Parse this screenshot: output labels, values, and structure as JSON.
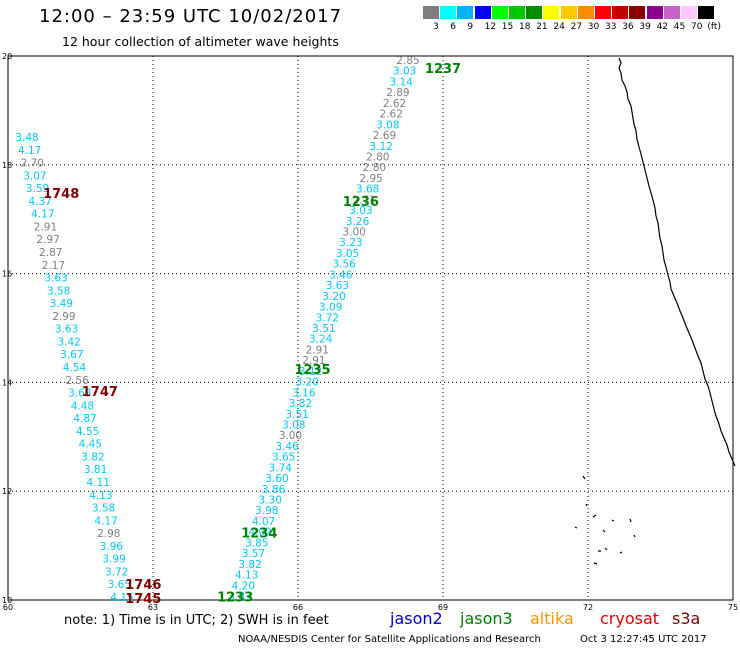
{
  "header": {
    "title": "12:00 – 23:59 UTC 10/02/2017",
    "subtitle": "12 hour collection of altimeter wave heights"
  },
  "colorbar": {
    "unit_label": "(ft)",
    "bins": [
      {
        "label": "3",
        "color": "#7f7f7f"
      },
      {
        "label": "6",
        "color": "#00ffff"
      },
      {
        "label": "9",
        "color": "#00b4ff"
      },
      {
        "label": "12",
        "color": "#0000ff"
      },
      {
        "label": "15",
        "color": "#00ff00"
      },
      {
        "label": "18",
        "color": "#00c800"
      },
      {
        "label": "21",
        "color": "#008c00"
      },
      {
        "label": "24",
        "color": "#ffff00"
      },
      {
        "label": "27",
        "color": "#ffc800"
      },
      {
        "label": "30",
        "color": "#ff8c00"
      },
      {
        "label": "33",
        "color": "#ff0000"
      },
      {
        "label": "36",
        "color": "#c80000"
      },
      {
        "label": "39",
        "color": "#8c0000"
      },
      {
        "label": "42",
        "color": "#8c008c"
      },
      {
        "label": "45",
        "color": "#c864c8"
      },
      {
        "label": "70",
        "color": "#ffc8ff"
      },
      {
        "label": "",
        "color": "#000000"
      }
    ]
  },
  "map": {
    "lon_ticks": [
      "60",
      "63",
      "66",
      "69",
      "72",
      "75"
    ],
    "lat_ticks": [
      "10",
      "12",
      "14",
      "16",
      "18",
      "20"
    ],
    "passes": [
      {
        "label": "1237",
        "color": "#008000",
        "lon": 69.0,
        "lat": 19.76
      },
      {
        "label": "1236",
        "color": "#008000",
        "lon": 67.3,
        "lat": 17.32
      },
      {
        "label": "1235",
        "color": "#008000",
        "lon": 66.3,
        "lat": 14.23
      },
      {
        "label": "1234",
        "color": "#008000",
        "lon": 65.2,
        "lat": 11.22
      },
      {
        "label": "1233",
        "color": "#008000",
        "lon": 64.7,
        "lat": 10.05
      },
      {
        "label": "1748",
        "color": "#800000",
        "lon": 61.1,
        "lat": 17.46
      },
      {
        "label": "1747",
        "color": "#800000",
        "lon": 61.9,
        "lat": 13.82
      },
      {
        "label": "1746",
        "color": "#800000",
        "lon": 62.8,
        "lat": 10.28
      },
      {
        "label": "1745",
        "color": "#800000",
        "lon": 62.8,
        "lat": 10.02
      }
    ],
    "tracks": [
      {
        "name": "track-1237",
        "values": [
          [
            "2.85",
            "#7f7f7f"
          ],
          [
            "3.03",
            "#00c8ff"
          ],
          [
            "3.14",
            "#00c8ff"
          ],
          [
            "2.89",
            "#7f7f7f"
          ],
          [
            "2.62",
            "#7f7f7f"
          ],
          [
            "2.62",
            "#7f7f7f"
          ],
          [
            "3.08",
            "#00c8ff"
          ],
          [
            "2.69",
            "#7f7f7f"
          ],
          [
            "3.12",
            "#00c8ff"
          ],
          [
            "2.80",
            "#7f7f7f"
          ],
          [
            "2.80",
            "#7f7f7f"
          ],
          [
            "2.95",
            "#7f7f7f"
          ],
          [
            "3.68",
            "#00c8ff"
          ],
          [
            "2.71",
            "#7f7f7f"
          ],
          [
            "3.03",
            "#00c8ff"
          ],
          [
            "3.26",
            "#00c8ff"
          ],
          [
            "3.00",
            "#7f7f7f"
          ],
          [
            "3.23",
            "#00c8ff"
          ],
          [
            "3.05",
            "#00c8ff"
          ],
          [
            "3.56",
            "#00c8ff"
          ],
          [
            "3.46",
            "#00c8ff"
          ],
          [
            "3.63",
            "#00c8ff"
          ],
          [
            "3.20",
            "#00c8ff"
          ],
          [
            "3.09",
            "#00c8ff"
          ],
          [
            "3.72",
            "#00c8ff"
          ],
          [
            "3.51",
            "#00c8ff"
          ],
          [
            "3.24",
            "#00c8ff"
          ],
          [
            "2.91",
            "#7f7f7f"
          ],
          [
            "2.91",
            "#7f7f7f"
          ],
          [
            "3.12",
            "#00c8ff"
          ],
          [
            "3.20",
            "#00c8ff"
          ],
          [
            "3.16",
            "#00c8ff"
          ],
          [
            "3.82",
            "#00c8ff"
          ],
          [
            "3.51",
            "#00c8ff"
          ],
          [
            "3.08",
            "#00c8ff"
          ],
          [
            "3.00",
            "#7f7f7f"
          ],
          [
            "3.46",
            "#00c8ff"
          ],
          [
            "3.65",
            "#00c8ff"
          ],
          [
            "3.74",
            "#00c8ff"
          ],
          [
            "3.60",
            "#00c8ff"
          ],
          [
            "3.86",
            "#00c8ff"
          ],
          [
            "3.30",
            "#00c8ff"
          ],
          [
            "3.98",
            "#00c8ff"
          ],
          [
            "4.07",
            "#00c8ff"
          ],
          [
            "4.02",
            "#00c8ff"
          ],
          [
            "3.85",
            "#00c8ff"
          ],
          [
            "3.57",
            "#00c8ff"
          ],
          [
            "3.82",
            "#00c8ff"
          ],
          [
            "4.13",
            "#00c8ff"
          ],
          [
            "4.20",
            "#00c8ff"
          ],
          [
            "3.87",
            "#00c8ff"
          ]
        ]
      },
      {
        "name": "track-1748",
        "values": [
          [
            "3.48",
            "#00c8ff"
          ],
          [
            "4.17",
            "#00c8ff"
          ],
          [
            "2.70",
            "#7f7f7f"
          ],
          [
            "3.07",
            "#00c8ff"
          ],
          [
            "3.59",
            "#00c8ff"
          ],
          [
            "4.37",
            "#00c8ff"
          ],
          [
            "4.17",
            "#00c8ff"
          ],
          [
            "2.91",
            "#7f7f7f"
          ],
          [
            "2.97",
            "#7f7f7f"
          ],
          [
            "2.87",
            "#7f7f7f"
          ],
          [
            "2.17",
            "#7f7f7f"
          ],
          [
            "3.63",
            "#00c8ff"
          ],
          [
            "3.58",
            "#00c8ff"
          ],
          [
            "3.49",
            "#00c8ff"
          ],
          [
            "2.99",
            "#7f7f7f"
          ],
          [
            "3.63",
            "#00c8ff"
          ],
          [
            "3.42",
            "#00c8ff"
          ],
          [
            "3.67",
            "#00c8ff"
          ],
          [
            "4.54",
            "#00c8ff"
          ],
          [
            "2.56",
            "#7f7f7f"
          ],
          [
            "3.68",
            "#00c8ff"
          ],
          [
            "4.48",
            "#00c8ff"
          ],
          [
            "4.87",
            "#00c8ff"
          ],
          [
            "4.55",
            "#00c8ff"
          ],
          [
            "4.45",
            "#00c8ff"
          ],
          [
            "3.82",
            "#00c8ff"
          ],
          [
            "3.81",
            "#00c8ff"
          ],
          [
            "4.11",
            "#00c8ff"
          ],
          [
            "4.13",
            "#00c8ff"
          ],
          [
            "3.58",
            "#00c8ff"
          ],
          [
            "4.17",
            "#00c8ff"
          ],
          [
            "2.98",
            "#7f7f7f"
          ],
          [
            "3.96",
            "#00c8ff"
          ],
          [
            "3.99",
            "#00c8ff"
          ],
          [
            "3.72",
            "#00c8ff"
          ],
          [
            "3.65",
            "#00c8ff"
          ],
          [
            "4.15",
            "#00c8ff"
          ]
        ]
      }
    ]
  },
  "footer": {
    "note": "note: 1) Time is in UTC; 2) SWH is in feet",
    "satellites": [
      {
        "name": "jason2",
        "color": "#0000c8"
      },
      {
        "name": "jason3",
        "color": "#008000"
      },
      {
        "name": "altika",
        "color": "#ff9600"
      },
      {
        "name": "cryosat",
        "color": "#e00000"
      },
      {
        "name": "s3a",
        "color": "#800000"
      }
    ],
    "credit": "NOAA/NESDIS Center for Satellite Applications and Research",
    "timestamp": "Oct  3 12:27:45 UTC 2017"
  }
}
